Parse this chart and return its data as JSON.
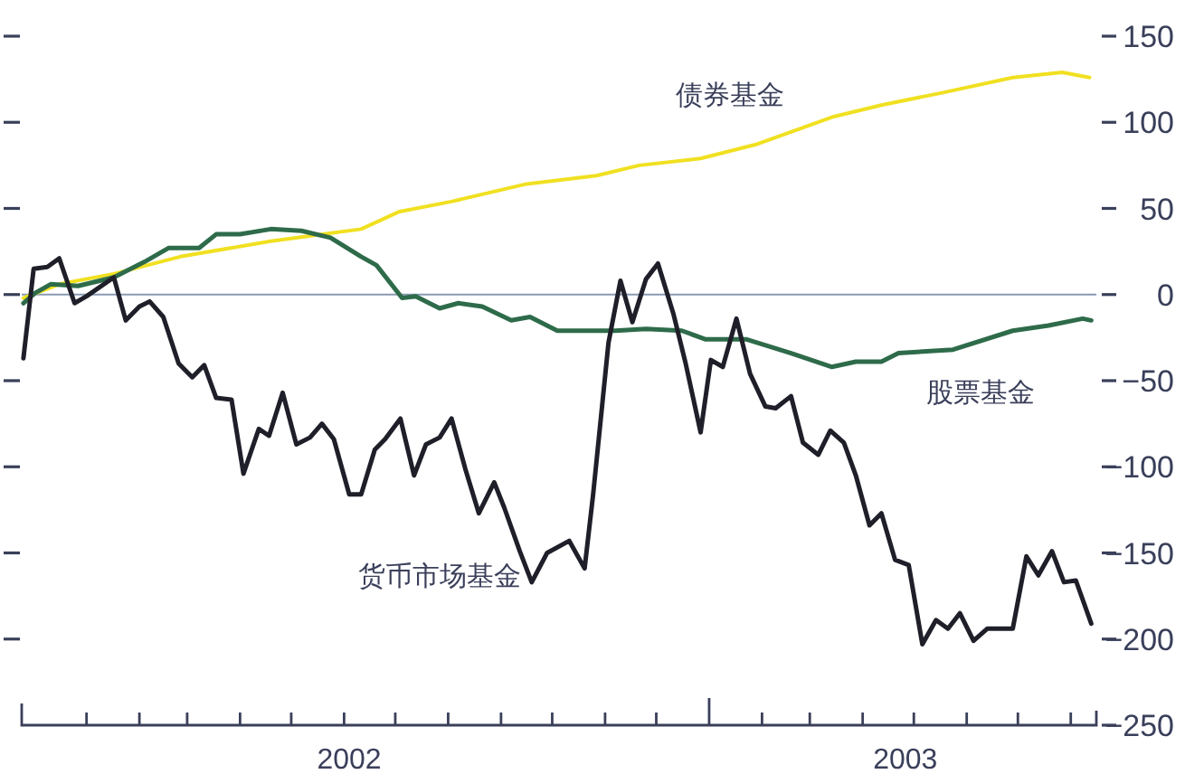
{
  "chart_data": {
    "type": "line",
    "xlim": [
      "2001-11-24",
      "2003-08-16"
    ],
    "xticks": [
      {
        "value": "2002-01-01",
        "label": null
      },
      {
        "value": "2002-02-01",
        "label": null
      },
      {
        "value": "2002-03-01",
        "label": null
      },
      {
        "value": "2002-04-01",
        "label": null
      },
      {
        "value": "2002-05-01",
        "label": null
      },
      {
        "value": "2002-06-01",
        "label": null
      },
      {
        "value": "2002-07-01",
        "label": null
      },
      {
        "value": "2002-08-01",
        "label": null
      },
      {
        "value": "2002-09-01",
        "label": null
      },
      {
        "value": "2002-10-01",
        "label": null
      },
      {
        "value": "2002-11-01",
        "label": null
      },
      {
        "value": "2002-12-01",
        "label": null
      },
      {
        "value": "2003-01-01",
        "label": null
      },
      {
        "value": "2003-02-01",
        "label": null
      },
      {
        "value": "2003-03-01",
        "label": null
      },
      {
        "value": "2003-04-01",
        "label": null
      },
      {
        "value": "2003-05-01",
        "label": null
      },
      {
        "value": "2003-06-01",
        "label": null
      },
      {
        "value": "2003-07-01",
        "label": null
      },
      {
        "value": "2003-08-01",
        "label": null
      },
      {
        "value": "2002-06-04",
        "label": "2002"
      },
      {
        "value": "2003-04-26",
        "label": "2003"
      }
    ],
    "ylim": [
      -250,
      150
    ],
    "yticks": [
      150,
      100,
      50,
      0,
      {
        "value": -50,
        "label": "−50"
      },
      {
        "value": -100,
        "label": "−100"
      },
      {
        "value": -150,
        "label": "−150"
      },
      {
        "value": -200,
        "label": "−200"
      },
      {
        "value": -250,
        "label": "−250"
      }
    ],
    "grid": false,
    "line_style": "solid",
    "ref_lines": [
      {
        "axis": "y",
        "value": 0,
        "color": "#8a9ab4"
      }
    ],
    "series": [
      {
        "name": "债券基金",
        "color": "#f0e020",
        "x": [
          "2001-11-25",
          "2001-12-16",
          "2002-01-17",
          "2002-02-25",
          "2002-04-19",
          "2002-06-11",
          "2002-07-03",
          "2002-08-03",
          "2002-09-15",
          "2002-10-27",
          "2002-11-21",
          "2002-12-27",
          "2003-01-28",
          "2003-03-14",
          "2003-04-12",
          "2003-05-17",
          "2003-06-28",
          "2003-07-27",
          "2003-08-12"
        ],
        "values": [
          -2,
          6,
          12,
          22,
          31,
          38,
          48,
          54,
          64,
          69,
          75,
          79,
          87,
          103,
          110,
          117,
          126,
          129,
          126
        ]
      },
      {
        "name": "股票基金",
        "color": "#2e6b4a",
        "x": [
          "2001-11-25",
          "2001-12-02",
          "2001-12-11",
          "2001-12-27",
          "2002-01-17",
          "2002-02-04",
          "2002-02-18",
          "2002-03-08",
          "2002-03-18",
          "2002-04-01",
          "2002-04-19",
          "2002-05-07",
          "2002-05-24",
          "2002-06-11",
          "2002-06-20",
          "2002-07-05",
          "2002-07-13",
          "2002-07-27",
          "2002-08-07",
          "2002-08-21",
          "2002-09-07",
          "2002-09-18",
          "2002-10-04",
          "2002-10-27",
          "2002-11-07",
          "2002-11-25",
          "2002-12-16",
          "2002-12-30",
          "2003-01-23",
          "2003-02-18",
          "2003-03-14",
          "2003-03-28",
          "2003-04-12",
          "2003-04-22",
          "2003-05-24",
          "2003-06-28",
          "2003-07-19",
          "2003-08-08",
          "2003-08-13"
        ],
        "values": [
          -5,
          1,
          6,
          5,
          10,
          19,
          27,
          27,
          35,
          35,
          38,
          37,
          33,
          22,
          17,
          -2,
          -1,
          -8,
          -5,
          -7,
          -15,
          -13,
          -21,
          -21,
          -21,
          -20,
          -21,
          -26,
          -26,
          -34,
          -42,
          -39,
          -39,
          -34,
          -32,
          -21,
          -18,
          -14,
          -15
        ]
      },
      {
        "name": "货币市场基金",
        "color": "#1f1f2a",
        "x": [
          "2001-11-25",
          "2001-12-01",
          "2001-12-09",
          "2001-12-16",
          "2001-12-25",
          "2002-01-01",
          "2002-01-17",
          "2002-01-24",
          "2002-02-01",
          "2002-02-07",
          "2002-02-15",
          "2002-02-24",
          "2002-03-04",
          "2002-03-11",
          "2002-03-18",
          "2002-03-27",
          "2002-04-03",
          "2002-04-12",
          "2002-04-18",
          "2002-04-26",
          "2002-05-04",
          "2002-05-12",
          "2002-05-19",
          "2002-05-26",
          "2002-06-04",
          "2002-06-11",
          "2002-06-19",
          "2002-06-25",
          "2002-07-04",
          "2002-07-12",
          "2002-07-19",
          "2002-07-27",
          "2002-08-03",
          "2002-08-11",
          "2002-08-19",
          "2002-08-28",
          "2002-09-03",
          "2002-09-12",
          "2002-09-19",
          "2002-09-28",
          "2002-10-11",
          "2002-10-20",
          "2002-10-25",
          "2002-11-03",
          "2002-11-10",
          "2002-11-17",
          "2002-11-25",
          "2002-12-02",
          "2002-12-11",
          "2002-12-18",
          "2002-12-27",
          "2003-01-02",
          "2003-01-09",
          "2003-01-17",
          "2003-01-25",
          "2003-02-03",
          "2003-02-09",
          "2003-02-18",
          "2003-02-25",
          "2003-03-06",
          "2003-03-13",
          "2003-03-21",
          "2003-03-28",
          "2003-04-05",
          "2003-04-12",
          "2003-04-20",
          "2003-04-28",
          "2003-05-06",
          "2003-05-14",
          "2003-05-21",
          "2003-05-28",
          "2003-06-05",
          "2003-06-13",
          "2003-06-28",
          "2003-07-06",
          "2003-07-13",
          "2003-07-21",
          "2003-07-28",
          "2003-08-04",
          "2003-08-13"
        ],
        "values": [
          -37,
          15,
          16,
          21,
          -5,
          -1,
          10,
          -15,
          -7,
          -4,
          -13,
          -40,
          -48,
          -41,
          -60,
          -61,
          -104,
          -78,
          -82,
          -57,
          -87,
          -83,
          -75,
          -84,
          -116,
          -116,
          -90,
          -84,
          -72,
          -105,
          -87,
          -83,
          -72,
          -101,
          -127,
          -109,
          -124,
          -149,
          -167,
          -150,
          -143,
          -159,
          -116,
          -28,
          8,
          -16,
          9,
          18,
          -11,
          -39,
          -80,
          -38,
          -42,
          -14,
          -46,
          -65,
          -66,
          -59,
          -86,
          -93,
          -79,
          -86,
          -105,
          -134,
          -127,
          -154,
          -157,
          -203,
          -189,
          -194,
          -185,
          -201,
          -194,
          -194,
          -152,
          -163,
          -149,
          -167,
          -166,
          -191
        ]
      }
    ]
  }
}
